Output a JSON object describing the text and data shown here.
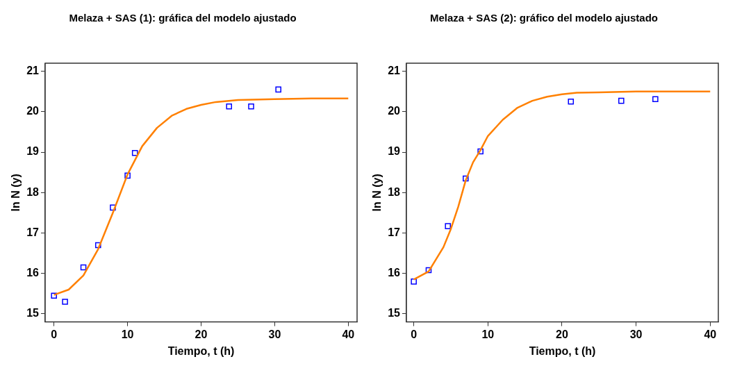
{
  "chart_data": [
    {
      "type": "scatter",
      "title": "Melaza + SAS (1): gráfica del modelo ajustado",
      "xlabel": "Tiempo, t (h)",
      "ylabel": "ln N (y)",
      "xlim": [
        -1.2,
        41.2
      ],
      "ylim": [
        14.8,
        21.2
      ],
      "xticks": [
        0,
        10,
        20,
        30,
        40
      ],
      "yticks": [
        15,
        16,
        17,
        18,
        19,
        20,
        21
      ],
      "grid": false,
      "series": [
        {
          "type": "line",
          "color": "#ff8000",
          "line_style": "solid",
          "marker": "none",
          "x": [
            0,
            2,
            4,
            6,
            8,
            10,
            12,
            14,
            16,
            18,
            20,
            22,
            25,
            30,
            35,
            40
          ],
          "values": [
            15.47,
            15.6,
            15.95,
            16.6,
            17.5,
            18.45,
            19.15,
            19.6,
            19.9,
            20.07,
            20.17,
            20.24,
            20.29,
            20.31,
            20.33,
            20.33
          ]
        },
        {
          "color": "#0000ff",
          "marker": "square",
          "x": [
            0,
            1.5,
            4,
            6,
            8,
            10,
            11,
            23.8,
            26.8,
            30.5
          ],
          "values": [
            15.45,
            15.3,
            16.15,
            16.7,
            17.63,
            18.42,
            18.98,
            20.13,
            20.13,
            20.55
          ]
        }
      ]
    },
    {
      "type": "scatter",
      "title": "Melaza + SAS (2): gráfico del modelo ajustado",
      "xlabel": "Tiempo, t (h)",
      "ylabel": "ln N (y)",
      "xlim": [
        -1,
        41.1
      ],
      "ylim": [
        14.8,
        21.2
      ],
      "xticks": [
        0,
        10,
        20,
        30,
        40
      ],
      "yticks": [
        15,
        16,
        17,
        18,
        19,
        20,
        21
      ],
      "grid": false,
      "series": [
        {
          "type": "line",
          "color": "#ff8000",
          "line_style": "solid",
          "marker": "none",
          "x": [
            0,
            2,
            4,
            5,
            6,
            7,
            8,
            9,
            10,
            12,
            14,
            16,
            18,
            20,
            22,
            25,
            30,
            40
          ],
          "values": [
            15.85,
            16.05,
            16.65,
            17.1,
            17.65,
            18.3,
            18.75,
            19.05,
            19.4,
            19.8,
            20.1,
            20.27,
            20.37,
            20.43,
            20.47,
            20.48,
            20.5,
            20.5
          ]
        },
        {
          "color": "#0000ff",
          "marker": "square",
          "x": [
            0,
            2,
            4.6,
            7,
            9,
            21.2,
            28,
            32.6
          ],
          "values": [
            15.8,
            16.08,
            17.17,
            18.35,
            19.02,
            20.25,
            20.27,
            20.31
          ]
        }
      ]
    }
  ]
}
